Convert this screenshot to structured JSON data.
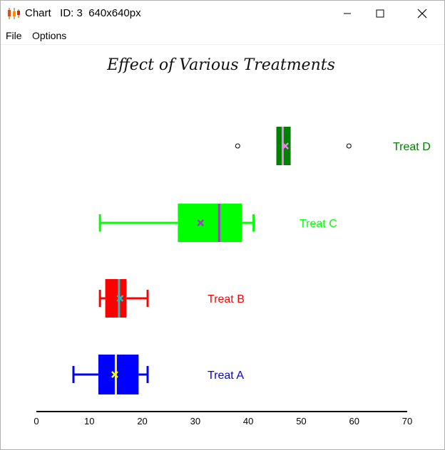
{
  "window": {
    "title": "Chart   ID: 3  640x640px",
    "icon": "candlestick-chart-icon",
    "controls": [
      "minimize-icon",
      "maximize-icon",
      "close-icon"
    ]
  },
  "menu": {
    "items": [
      "File",
      "Options"
    ]
  },
  "chart_data": {
    "type": "boxplot",
    "orientation": "horizontal",
    "title": "Effect of Various Treatments",
    "xlim": [
      0,
      70
    ],
    "xticks": [
      0,
      10,
      20,
      30,
      40,
      50,
      60,
      70
    ],
    "grid": false,
    "legend": "series labels at right of each box",
    "series": [
      {
        "name": "Treat A",
        "color": "#0000ff",
        "median_color": "#ffff00",
        "mean_color": "#ffff00",
        "whisker_low": 7,
        "q1": 11.7,
        "median": 15,
        "q3": 19.3,
        "whisker_high": 21,
        "mean": 14.8,
        "outliers": []
      },
      {
        "name": "Treat B",
        "color": "#ff0000",
        "median_color": "#20c0c0",
        "mean_color": "#20c0c0",
        "whisker_low": 12,
        "q1": 13,
        "median": 15.6,
        "q3": 17,
        "whisker_high": 21,
        "mean": 15.8,
        "outliers": []
      },
      {
        "name": "Treat C",
        "color": "#00ff00",
        "median_color": "#a040c0",
        "mean_color": "#a040c0",
        "whisker_low": 12,
        "q1": 26.7,
        "median": 34.5,
        "q3": 38.8,
        "whisker_high": 41,
        "mean": 31,
        "outliers": []
      },
      {
        "name": "Treat D",
        "color": "#008000",
        "median_color": "#ee82ee",
        "mean_color": "#ee82ee",
        "whisker_low": 45.3,
        "q1": 45.3,
        "median": 46.5,
        "q3": 48,
        "whisker_high": 48,
        "mean": 47,
        "outliers": [
          38,
          59
        ]
      }
    ]
  }
}
